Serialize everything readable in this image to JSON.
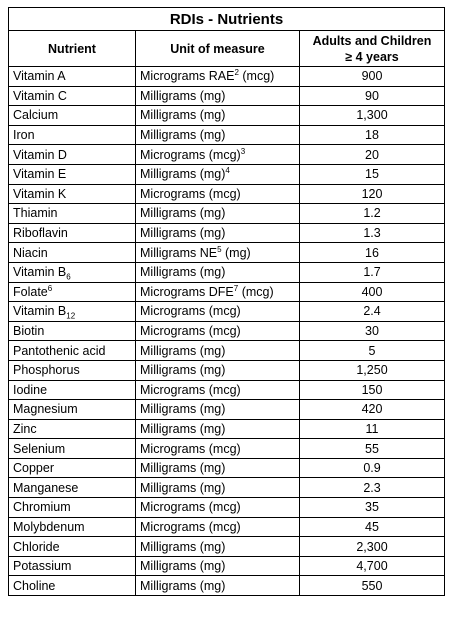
{
  "title": "RDIs - Nutrients",
  "columns": {
    "nutrient": "Nutrient",
    "unit": "Unit of measure",
    "amount_line1": "Adults and Children",
    "amount_line2": "≥ 4 years"
  },
  "rows": [
    {
      "nutrient": "Vitamin A",
      "nutrient_sub": "",
      "nutrient_sup": "",
      "unit": "Micrograms RAE",
      "unit_sup": "2",
      "unit_tail": " (mcg)",
      "amount": "900"
    },
    {
      "nutrient": "Vitamin C",
      "nutrient_sub": "",
      "nutrient_sup": "",
      "unit": "Milligrams (mg)",
      "unit_sup": "",
      "unit_tail": "",
      "amount": "90"
    },
    {
      "nutrient": "Calcium",
      "nutrient_sub": "",
      "nutrient_sup": "",
      "unit": "Milligrams (mg)",
      "unit_sup": "",
      "unit_tail": "",
      "amount": "1,300"
    },
    {
      "nutrient": "Iron",
      "nutrient_sub": "",
      "nutrient_sup": "",
      "unit": "Milligrams (mg)",
      "unit_sup": "",
      "unit_tail": "",
      "amount": "18"
    },
    {
      "nutrient": "Vitamin D",
      "nutrient_sub": "",
      "nutrient_sup": "",
      "unit": "Micrograms (mcg)",
      "unit_sup": "3",
      "unit_tail": "",
      "amount": "20"
    },
    {
      "nutrient": "Vitamin E",
      "nutrient_sub": "",
      "nutrient_sup": "",
      "unit": "Milligrams (mg)",
      "unit_sup": "4",
      "unit_tail": "",
      "amount": "15"
    },
    {
      "nutrient": "Vitamin K",
      "nutrient_sub": "",
      "nutrient_sup": "",
      "unit": "Micrograms (mcg)",
      "unit_sup": "",
      "unit_tail": "",
      "amount": "120"
    },
    {
      "nutrient": "Thiamin",
      "nutrient_sub": "",
      "nutrient_sup": "",
      "unit": "Milligrams (mg)",
      "unit_sup": "",
      "unit_tail": "",
      "amount": "1.2"
    },
    {
      "nutrient": "Riboflavin",
      "nutrient_sub": "",
      "nutrient_sup": "",
      "unit": "Milligrams (mg)",
      "unit_sup": "",
      "unit_tail": "",
      "amount": "1.3"
    },
    {
      "nutrient": "Niacin",
      "nutrient_sub": "",
      "nutrient_sup": "",
      "unit": "Milligrams NE",
      "unit_sup": "5",
      "unit_tail": " (mg)",
      "amount": "16"
    },
    {
      "nutrient": "Vitamin B",
      "nutrient_sub": "6",
      "nutrient_sup": "",
      "unit": "Milligrams (mg)",
      "unit_sup": "",
      "unit_tail": "",
      "amount": "1.7"
    },
    {
      "nutrient": "Folate",
      "nutrient_sub": "",
      "nutrient_sup": "6",
      "unit": "Micrograms DFE",
      "unit_sup": "7",
      "unit_tail": " (mcg)",
      "amount": "400"
    },
    {
      "nutrient": "Vitamin B",
      "nutrient_sub": "12",
      "nutrient_sup": "",
      "unit": "Micrograms (mcg)",
      "unit_sup": "",
      "unit_tail": "",
      "amount": "2.4"
    },
    {
      "nutrient": "Biotin",
      "nutrient_sub": "",
      "nutrient_sup": "",
      "unit": "Micrograms (mcg)",
      "unit_sup": "",
      "unit_tail": "",
      "amount": "30"
    },
    {
      "nutrient": "Pantothenic acid",
      "nutrient_sub": "",
      "nutrient_sup": "",
      "unit": "Milligrams (mg)",
      "unit_sup": "",
      "unit_tail": "",
      "amount": "5"
    },
    {
      "nutrient": "Phosphorus",
      "nutrient_sub": "",
      "nutrient_sup": "",
      "unit": "Milligrams (mg)",
      "unit_sup": "",
      "unit_tail": "",
      "amount": "1,250"
    },
    {
      "nutrient": "Iodine",
      "nutrient_sub": "",
      "nutrient_sup": "",
      "unit": "Micrograms (mcg)",
      "unit_sup": "",
      "unit_tail": "",
      "amount": "150"
    },
    {
      "nutrient": "Magnesium",
      "nutrient_sub": "",
      "nutrient_sup": "",
      "unit": "Milligrams (mg)",
      "unit_sup": "",
      "unit_tail": "",
      "amount": "420"
    },
    {
      "nutrient": "Zinc",
      "nutrient_sub": "",
      "nutrient_sup": "",
      "unit": "Milligrams (mg)",
      "unit_sup": "",
      "unit_tail": "",
      "amount": "11"
    },
    {
      "nutrient": "Selenium",
      "nutrient_sub": "",
      "nutrient_sup": "",
      "unit": "Micrograms (mcg)",
      "unit_sup": "",
      "unit_tail": "",
      "amount": "55"
    },
    {
      "nutrient": "Copper",
      "nutrient_sub": "",
      "nutrient_sup": "",
      "unit": "Milligrams (mg)",
      "unit_sup": "",
      "unit_tail": "",
      "amount": "0.9"
    },
    {
      "nutrient": "Manganese",
      "nutrient_sub": "",
      "nutrient_sup": "",
      "unit": "Milligrams (mg)",
      "unit_sup": "",
      "unit_tail": "",
      "amount": "2.3"
    },
    {
      "nutrient": "Chromium",
      "nutrient_sub": "",
      "nutrient_sup": "",
      "unit": "Micrograms (mcg)",
      "unit_sup": "",
      "unit_tail": "",
      "amount": "35"
    },
    {
      "nutrient": "Molybdenum",
      "nutrient_sub": "",
      "nutrient_sup": "",
      "unit": "Micrograms (mcg)",
      "unit_sup": "",
      "unit_tail": "",
      "amount": "45"
    },
    {
      "nutrient": "Chloride",
      "nutrient_sub": "",
      "nutrient_sup": "",
      "unit": "Milligrams (mg)",
      "unit_sup": "",
      "unit_tail": "",
      "amount": "2,300"
    },
    {
      "nutrient": "Potassium",
      "nutrient_sub": "",
      "nutrient_sup": "",
      "unit": "Milligrams (mg)",
      "unit_sup": "",
      "unit_tail": "",
      "amount": "4,700"
    },
    {
      "nutrient": "Choline",
      "nutrient_sub": "",
      "nutrient_sup": "",
      "unit": "Milligrams (mg)",
      "unit_sup": "",
      "unit_tail": "",
      "amount": "550"
    }
  ]
}
